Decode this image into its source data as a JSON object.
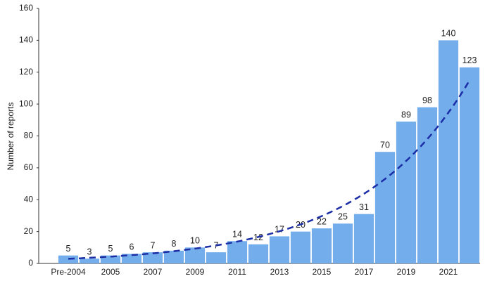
{
  "chart_data": {
    "type": "bar",
    "y_label": "Number of reports",
    "categories": [
      "Pre-2004",
      null,
      "2005",
      null,
      "2007",
      null,
      "2009",
      null,
      "2011",
      null,
      "2013",
      null,
      "2015",
      null,
      "2017",
      null,
      "2019",
      null,
      "2021",
      null
    ],
    "values": [
      5,
      3,
      5,
      6,
      7,
      8,
      10,
      7,
      14,
      12,
      17,
      20,
      22,
      25,
      31,
      70,
      89,
      98,
      140,
      123
    ],
    "color": "#74adec",
    "trendline": true,
    "trendline_color": "#1c2ea6",
    "ylim": [
      0,
      160
    ],
    "yticks": [
      0,
      20,
      40,
      60,
      80,
      100,
      120,
      140,
      160
    ],
    "grid": false
  }
}
